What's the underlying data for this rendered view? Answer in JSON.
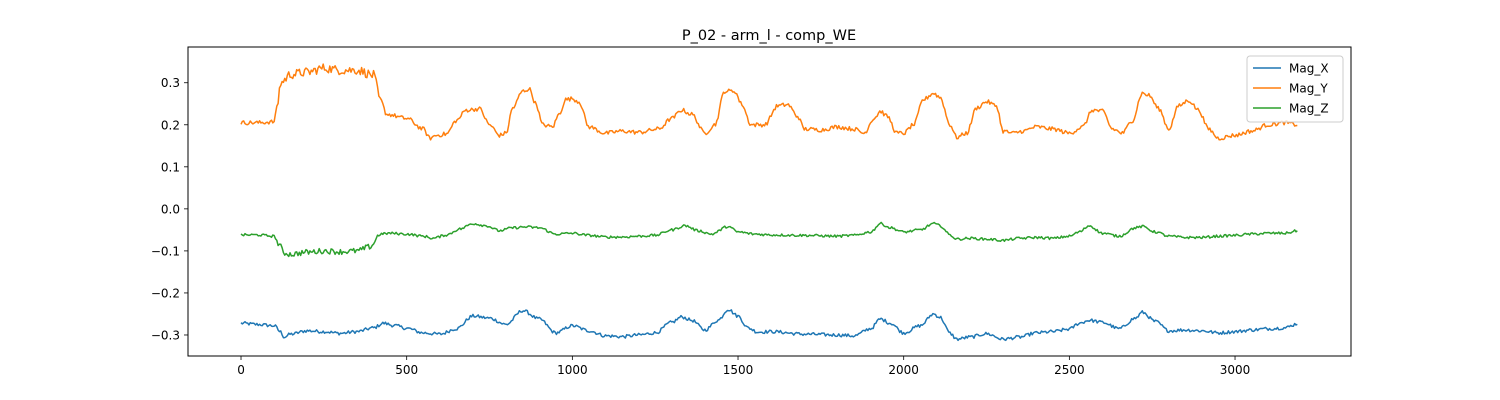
{
  "chart_data": {
    "type": "line",
    "title": "P_02 - arm_l - comp_WE",
    "xlabel": "",
    "ylabel": "",
    "xlim": [
      -160,
      3350
    ],
    "ylim": [
      -0.35,
      0.385
    ],
    "xticks": [
      0,
      500,
      1000,
      1500,
      2000,
      2500,
      3000
    ],
    "xtick_labels": [
      "0",
      "500",
      "1000",
      "1500",
      "2000",
      "2500",
      "3000"
    ],
    "yticks": [
      -0.3,
      -0.2,
      -0.1,
      0.0,
      0.1,
      0.2,
      0.3
    ],
    "ytick_labels": [
      "−0.3",
      "−0.2",
      "−0.1",
      "0.0",
      "0.1",
      "0.2",
      "0.3"
    ],
    "grid": false,
    "legend_position": "top-right",
    "series": [
      {
        "name": "Mag_X",
        "color": "#1f77b4",
        "x": [
          0,
          50,
          100,
          120,
          130,
          150,
          200,
          250,
          300,
          350,
          400,
          430,
          460,
          500,
          550,
          600,
          650,
          700,
          750,
          800,
          850,
          900,
          950,
          1000,
          1050,
          1100,
          1150,
          1200,
          1250,
          1300,
          1330,
          1360,
          1400,
          1440,
          1470,
          1500,
          1530,
          1560,
          1600,
          1700,
          1800,
          1850,
          1900,
          1930,
          1960,
          2000,
          2050,
          2090,
          2110,
          2140,
          2160,
          2200,
          2250,
          2300,
          2350,
          2400,
          2450,
          2500,
          2530,
          2560,
          2600,
          2650,
          2700,
          2720,
          2760,
          2800,
          2850,
          2900,
          2950,
          3000,
          3050,
          3100,
          3150,
          3190
        ],
        "values": [
          -0.272,
          -0.275,
          -0.278,
          -0.293,
          -0.305,
          -0.298,
          -0.29,
          -0.292,
          -0.296,
          -0.292,
          -0.283,
          -0.272,
          -0.277,
          -0.284,
          -0.295,
          -0.298,
          -0.285,
          -0.255,
          -0.26,
          -0.275,
          -0.242,
          -0.262,
          -0.295,
          -0.278,
          -0.29,
          -0.302,
          -0.304,
          -0.3,
          -0.295,
          -0.27,
          -0.257,
          -0.265,
          -0.288,
          -0.265,
          -0.239,
          -0.255,
          -0.283,
          -0.293,
          -0.292,
          -0.298,
          -0.3,
          -0.302,
          -0.285,
          -0.262,
          -0.272,
          -0.295,
          -0.278,
          -0.25,
          -0.258,
          -0.296,
          -0.31,
          -0.305,
          -0.297,
          -0.31,
          -0.305,
          -0.295,
          -0.292,
          -0.286,
          -0.272,
          -0.265,
          -0.27,
          -0.285,
          -0.26,
          -0.246,
          -0.268,
          -0.29,
          -0.288,
          -0.29,
          -0.295,
          -0.292,
          -0.288,
          -0.285,
          -0.283,
          -0.273
        ],
        "noise": 0.004
      },
      {
        "name": "Mag_Y",
        "color": "#ff7f0e",
        "x": [
          0,
          50,
          100,
          110,
          120,
          150,
          200,
          250,
          300,
          350,
          400,
          420,
          440,
          500,
          550,
          570,
          590,
          620,
          650,
          680,
          720,
          750,
          780,
          800,
          820,
          850,
          870,
          890,
          910,
          940,
          960,
          980,
          1000,
          1020,
          1050,
          1100,
          1150,
          1200,
          1260,
          1300,
          1330,
          1360,
          1400,
          1430,
          1460,
          1490,
          1510,
          1540,
          1580,
          1620,
          1650,
          1680,
          1700,
          1750,
          1800,
          1850,
          1880,
          1910,
          1930,
          1950,
          1980,
          2000,
          2030,
          2060,
          2090,
          2110,
          2140,
          2160,
          2190,
          2220,
          2250,
          2280,
          2300,
          2330,
          2360,
          2400,
          2450,
          2500,
          2540,
          2570,
          2600,
          2630,
          2660,
          2690,
          2720,
          2740,
          2770,
          2800,
          2830,
          2860,
          2890,
          2920,
          2950,
          3000,
          3050,
          3100,
          3150,
          3190
        ],
        "values": [
          0.205,
          0.205,
          0.207,
          0.25,
          0.3,
          0.32,
          0.325,
          0.335,
          0.33,
          0.33,
          0.318,
          0.26,
          0.225,
          0.215,
          0.19,
          0.168,
          0.175,
          0.178,
          0.21,
          0.235,
          0.238,
          0.2,
          0.175,
          0.18,
          0.24,
          0.28,
          0.285,
          0.25,
          0.2,
          0.195,
          0.225,
          0.26,
          0.262,
          0.255,
          0.195,
          0.18,
          0.185,
          0.182,
          0.19,
          0.215,
          0.235,
          0.225,
          0.18,
          0.2,
          0.28,
          0.28,
          0.25,
          0.2,
          0.2,
          0.245,
          0.248,
          0.22,
          0.19,
          0.188,
          0.195,
          0.19,
          0.18,
          0.215,
          0.232,
          0.22,
          0.18,
          0.18,
          0.2,
          0.26,
          0.275,
          0.265,
          0.2,
          0.17,
          0.18,
          0.24,
          0.255,
          0.245,
          0.185,
          0.18,
          0.185,
          0.195,
          0.19,
          0.18,
          0.195,
          0.235,
          0.232,
          0.19,
          0.18,
          0.21,
          0.275,
          0.27,
          0.238,
          0.19,
          0.245,
          0.258,
          0.235,
          0.19,
          0.168,
          0.175,
          0.185,
          0.2,
          0.205,
          0.2
        ],
        "noise": 0.005
      },
      {
        "name": "Mag_Z",
        "color": "#2ca02c",
        "x": [
          0,
          50,
          100,
          115,
          130,
          150,
          200,
          250,
          300,
          350,
          390,
          420,
          450,
          500,
          550,
          580,
          620,
          660,
          700,
          740,
          780,
          820,
          860,
          900,
          950,
          1000,
          1050,
          1100,
          1150,
          1200,
          1250,
          1300,
          1340,
          1380,
          1420,
          1470,
          1500,
          1550,
          1600,
          1700,
          1800,
          1850,
          1900,
          1930,
          1960,
          2000,
          2050,
          2090,
          2110,
          2140,
          2160,
          2200,
          2250,
          2300,
          2350,
          2400,
          2450,
          2500,
          2530,
          2560,
          2600,
          2650,
          2700,
          2720,
          2760,
          2800,
          2850,
          2900,
          2950,
          3000,
          3050,
          3100,
          3150,
          3190
        ],
        "values": [
          -0.062,
          -0.062,
          -0.065,
          -0.085,
          -0.105,
          -0.108,
          -0.103,
          -0.1,
          -0.102,
          -0.1,
          -0.09,
          -0.06,
          -0.058,
          -0.06,
          -0.065,
          -0.07,
          -0.062,
          -0.048,
          -0.035,
          -0.04,
          -0.052,
          -0.045,
          -0.043,
          -0.045,
          -0.06,
          -0.058,
          -0.063,
          -0.067,
          -0.067,
          -0.065,
          -0.063,
          -0.05,
          -0.04,
          -0.052,
          -0.06,
          -0.042,
          -0.055,
          -0.06,
          -0.062,
          -0.063,
          -0.065,
          -0.063,
          -0.055,
          -0.035,
          -0.045,
          -0.055,
          -0.05,
          -0.035,
          -0.04,
          -0.062,
          -0.072,
          -0.07,
          -0.072,
          -0.075,
          -0.07,
          -0.068,
          -0.07,
          -0.065,
          -0.055,
          -0.04,
          -0.058,
          -0.065,
          -0.045,
          -0.042,
          -0.055,
          -0.065,
          -0.068,
          -0.068,
          -0.065,
          -0.063,
          -0.06,
          -0.058,
          -0.058,
          -0.052
        ],
        "noise": 0.003
      }
    ]
  }
}
